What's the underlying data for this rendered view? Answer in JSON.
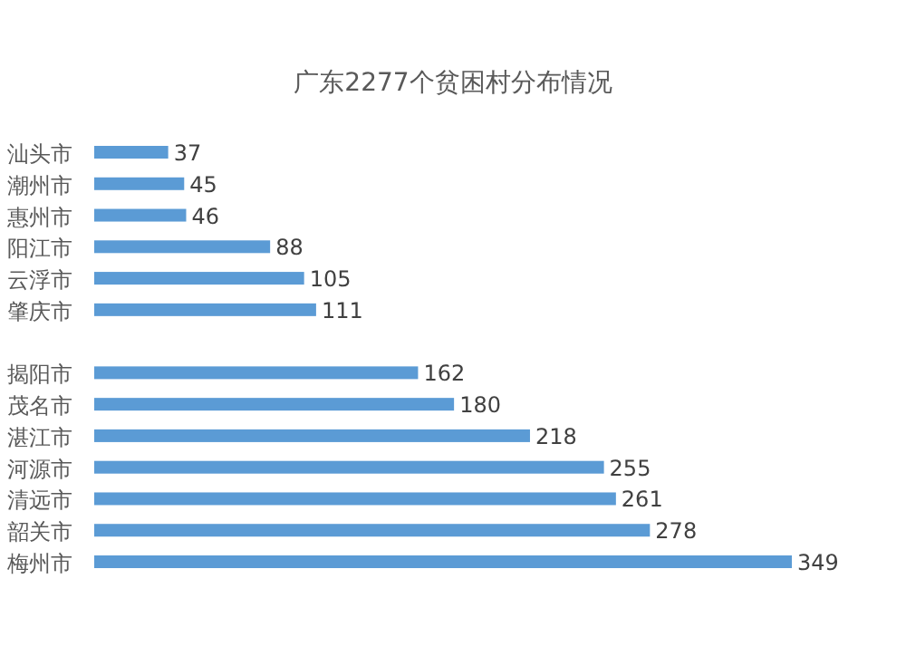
{
  "chart_data": {
    "type": "bar",
    "orientation": "horizontal",
    "title": "广东2277个贫困村分布情况",
    "categories": [
      "汕头市",
      "潮州市",
      "惠州市",
      "阳江市",
      "云浮市",
      "肇庆市",
      null,
      "揭阳市",
      "茂名市",
      "湛江市",
      "河源市",
      "清远市",
      "韶关市",
      "梅州市"
    ],
    "values": [
      37,
      45,
      46,
      88,
      105,
      111,
      null,
      162,
      180,
      218,
      255,
      261,
      278,
      349
    ],
    "color": "#5b9bd5",
    "data_labels": true
  }
}
